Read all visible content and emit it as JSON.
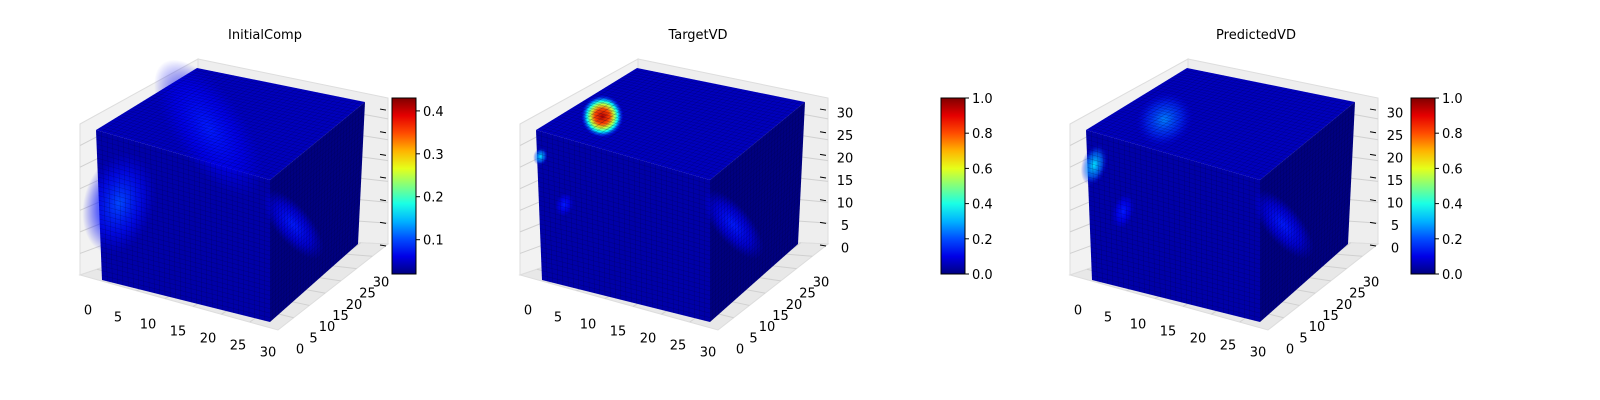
{
  "colormap": "jet",
  "chart_data": [
    {
      "type": "heatmap",
      "subtype": "3d-voxel",
      "title": "InitialComp",
      "axes": {
        "x": {
          "range": [
            0,
            32
          ],
          "ticks": [
            "0",
            "5",
            "10",
            "15",
            "20",
            "25",
            "30"
          ]
        },
        "y": {
          "range": [
            0,
            32
          ],
          "ticks": [
            "0",
            "5",
            "10",
            "15",
            "20",
            "25",
            "30"
          ]
        },
        "z": {
          "range": [
            0,
            32
          ],
          "ticks": []
        }
      },
      "colorbar": {
        "range": [
          0.02,
          0.43
        ],
        "ticks": [
          "0.1",
          "0.2",
          "0.3",
          "0.4"
        ],
        "tick_values": [
          0.1,
          0.2,
          0.3,
          0.4
        ]
      },
      "hotspots": [
        {
          "face": "top",
          "u": 0.35,
          "v": 0.45,
          "ru": 0.3,
          "rv": 0.45,
          "value": 0.08
        },
        {
          "face": "front",
          "u": 0.12,
          "v": 0.45,
          "ru": 0.2,
          "rv": 0.35,
          "value": 0.1
        },
        {
          "face": "side",
          "u": 0.25,
          "v": 0.45,
          "ru": 0.15,
          "rv": 0.3,
          "value": 0.07
        }
      ],
      "grid": true
    },
    {
      "type": "heatmap",
      "subtype": "3d-voxel",
      "title": "TargetVD",
      "axes": {
        "x": {
          "range": [
            0,
            32
          ],
          "ticks": [
            "0",
            "5",
            "10",
            "15",
            "20",
            "25",
            "30"
          ]
        },
        "y": {
          "range": [
            0,
            32
          ],
          "ticks": [
            "0",
            "5",
            "10",
            "15",
            "20",
            "25",
            "30"
          ]
        },
        "z": {
          "range": [
            0,
            32
          ],
          "ticks": [
            "0",
            "5",
            "10",
            "15",
            "20",
            "25",
            "30"
          ]
        }
      },
      "colorbar": {
        "range": [
          0.0,
          1.0
        ],
        "ticks": [
          "0.0",
          "0.2",
          "0.4",
          "0.6",
          "0.8",
          "1.0"
        ],
        "tick_values": [
          0.0,
          0.2,
          0.4,
          0.6,
          0.8,
          1.0
        ]
      },
      "hotspots": [
        {
          "face": "top",
          "u": 0.35,
          "v": 0.18,
          "ru": 0.18,
          "rv": 0.12,
          "value": 0.95
        },
        {
          "face": "front",
          "u": 0.02,
          "v": 0.17,
          "ru": 0.04,
          "rv": 0.06,
          "value": 0.35
        },
        {
          "face": "front",
          "u": 0.15,
          "v": 0.45,
          "ru": 0.05,
          "rv": 0.08,
          "value": 0.08
        },
        {
          "face": "side",
          "u": 0.25,
          "v": 0.45,
          "ru": 0.15,
          "rv": 0.3,
          "value": 0.07
        }
      ],
      "grid": true
    },
    {
      "type": "heatmap",
      "subtype": "3d-voxel",
      "title": "PredictedVD",
      "axes": {
        "x": {
          "range": [
            0,
            32
          ],
          "ticks": [
            "0",
            "5",
            "10",
            "15",
            "20",
            "25",
            "30"
          ]
        },
        "y": {
          "range": [
            0,
            32
          ],
          "ticks": [
            "0",
            "5",
            "10",
            "15",
            "20",
            "25",
            "30"
          ]
        },
        "z": {
          "range": [
            0,
            32
          ],
          "ticks": [
            "0",
            "5",
            "10",
            "15",
            "20",
            "25",
            "30"
          ]
        }
      },
      "colorbar": {
        "range": [
          0.0,
          1.0
        ],
        "ticks": [
          "0.0",
          "0.2",
          "0.4",
          "0.6",
          "0.8",
          "1.0"
        ],
        "tick_values": [
          0.0,
          0.2,
          0.4,
          0.6,
          0.8,
          1.0
        ]
      },
      "hotspots": [
        {
          "face": "top",
          "u": 0.35,
          "v": 0.25,
          "ru": 0.25,
          "rv": 0.15,
          "value": 0.25
        },
        {
          "face": "front",
          "u": 0.04,
          "v": 0.22,
          "ru": 0.07,
          "rv": 0.14,
          "value": 0.35
        },
        {
          "face": "front",
          "u": 0.2,
          "v": 0.48,
          "ru": 0.06,
          "rv": 0.12,
          "value": 0.1
        },
        {
          "face": "side",
          "u": 0.25,
          "v": 0.45,
          "ru": 0.15,
          "rv": 0.3,
          "value": 0.07
        }
      ],
      "grid": true
    }
  ]
}
